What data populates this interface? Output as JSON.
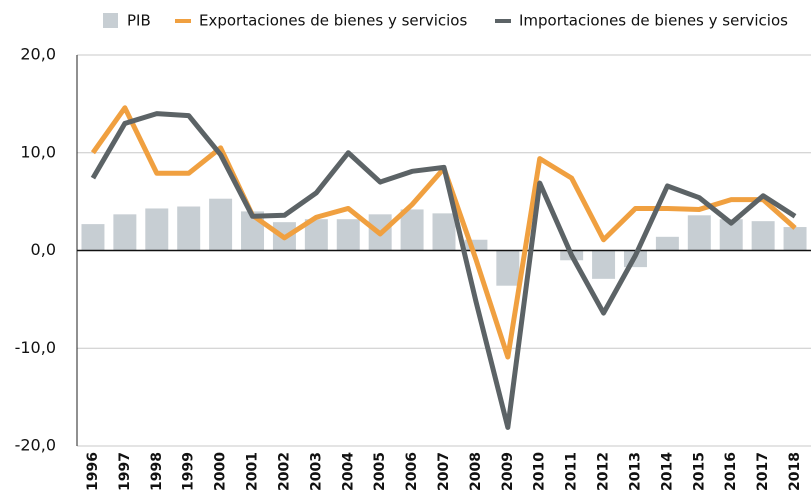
{
  "chart_data": {
    "type": "bar",
    "categories": [
      "1996",
      "1997",
      "1998",
      "1999",
      "2000",
      "2001",
      "2002",
      "2003",
      "2004",
      "2005",
      "2006",
      "2007",
      "2008",
      "2009",
      "2010",
      "2011",
      "2012",
      "2013",
      "2014",
      "2015",
      "2016",
      "2017",
      "2018"
    ],
    "series": [
      {
        "name": "PIB",
        "type": "bar",
        "color": "#c7ced3",
        "values": [
          2.7,
          3.7,
          4.3,
          4.5,
          5.3,
          4.0,
          2.9,
          3.2,
          3.2,
          3.7,
          4.2,
          3.8,
          1.1,
          -3.6,
          0.0,
          -1.0,
          -2.9,
          -1.7,
          1.4,
          3.6,
          3.2,
          3.0,
          2.4
        ]
      },
      {
        "name": "Exportaciones de bienes y servicios",
        "type": "line",
        "color": "#f0a040",
        "values": [
          10.0,
          14.6,
          7.9,
          7.9,
          10.5,
          3.6,
          1.3,
          3.4,
          4.3,
          1.7,
          4.7,
          8.4,
          -0.9,
          -10.9,
          9.4,
          7.4,
          1.1,
          4.3,
          4.3,
          4.2,
          5.2,
          5.2,
          2.3
        ]
      },
      {
        "name": "Importaciones de bienes y servicios",
        "type": "line",
        "color": "#5c6366",
        "values": [
          7.4,
          13.0,
          14.0,
          13.8,
          9.8,
          3.5,
          3.6,
          5.9,
          10.0,
          7.0,
          8.1,
          8.5,
          -5.2,
          -18.1,
          6.9,
          -0.5,
          -6.4,
          -0.5,
          6.6,
          5.4,
          2.8,
          5.6,
          3.5
        ]
      }
    ],
    "ylim": [
      -20,
      20
    ],
    "yticks": [
      {
        "value": -20,
        "label": "-20,0"
      },
      {
        "value": -10,
        "label": "-10,0"
      },
      {
        "value": 0,
        "label": "0,0"
      },
      {
        "value": 10,
        "label": "10,0"
      },
      {
        "value": 20,
        "label": "20,0"
      }
    ],
    "grid": true
  }
}
